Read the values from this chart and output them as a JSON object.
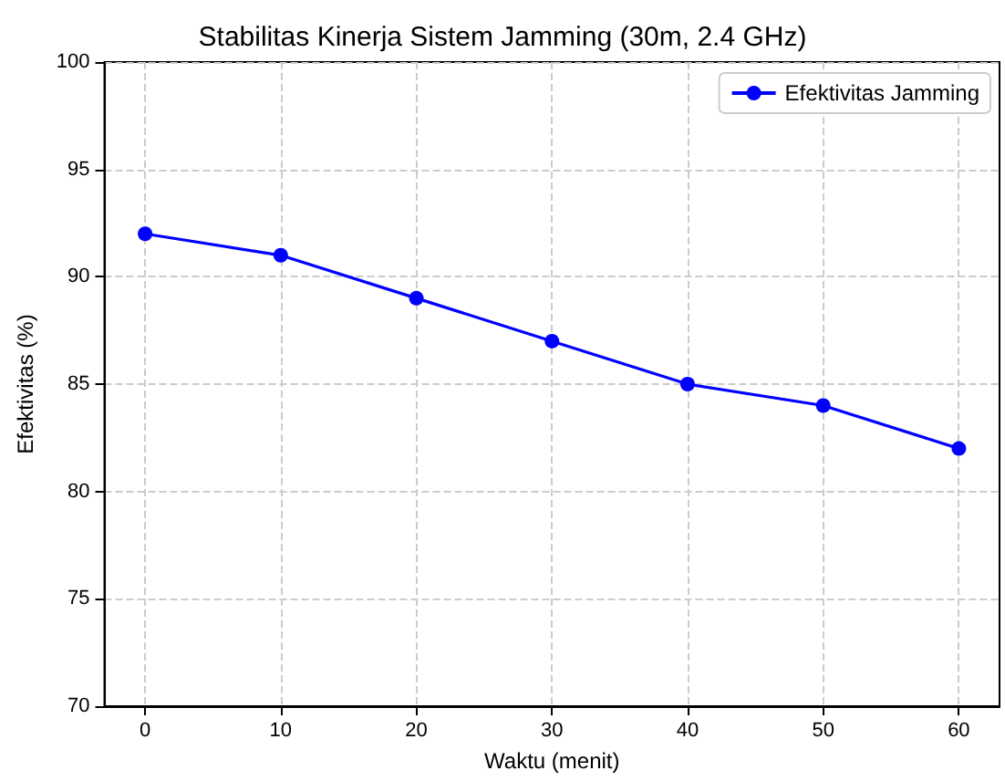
{
  "chart_data": {
    "type": "line",
    "title": "Stabilitas Kinerja Sistem Jamming (30m, 2.4 GHz)",
    "xlabel": "Waktu (menit)",
    "ylabel": "Efektivitas (%)",
    "x": [
      0,
      10,
      20,
      30,
      40,
      50,
      60
    ],
    "series": [
      {
        "name": "Efektivitas Jamming",
        "color": "#0000ff",
        "values": [
          92,
          91,
          89,
          87,
          85,
          84,
          82
        ]
      }
    ],
    "xlim": [
      -3,
      63
    ],
    "xticks": [
      0,
      10,
      20,
      30,
      40,
      50,
      60
    ],
    "ylim": [
      70,
      100
    ],
    "yticks": [
      70,
      75,
      80,
      85,
      90,
      95,
      100
    ],
    "grid": true,
    "legend": "top right",
    "marker": "circle",
    "line_style": "solid"
  }
}
